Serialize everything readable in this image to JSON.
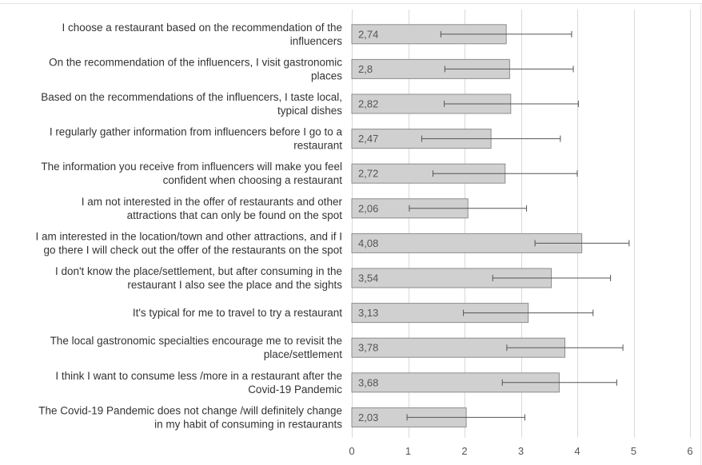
{
  "chart_data": {
    "type": "bar",
    "orientation": "horizontal",
    "grid": true,
    "xlim": [
      0,
      6
    ],
    "xticks": [
      "0",
      "1",
      "2",
      "3",
      "4",
      "5",
      "6"
    ],
    "categories": [
      [
        "I choose a restaurant based on the recommendation of the",
        "influencers"
      ],
      [
        "On the recommendation of the influencers, I visit gastronomic",
        "places"
      ],
      [
        "Based on the recommendations of the influencers, I taste local,",
        "typical dishes"
      ],
      [
        "I regularly gather information from influencers before I go to a",
        "restaurant"
      ],
      [
        "The information you receive from influencers will make you feel",
        "confident when choosing a restaurant"
      ],
      [
        "I am not interested in the offer of restaurants and other",
        "attractions that can only be found on the spot"
      ],
      [
        "I am interested in the location/town and other attractions, and if I",
        "go there I will check out the offer of the restaurants on the spot"
      ],
      [
        "I don't know the place/settlement, but after consuming in the",
        "restaurant I also see the place and the sights"
      ],
      [
        "It's typical for me to travel to try a restaurant"
      ],
      [
        "The local gastronomic specialties encourage me to revisit the",
        "place/settlement"
      ],
      [
        "I think I want to consume less /more in a restaurant after the",
        "Covid-19 Pandemic"
      ],
      [
        "The Covid-19 Pandemic does not change /will definitely change",
        "in my habit of consuming in restaurants"
      ]
    ],
    "values": [
      2.74,
      2.8,
      2.82,
      2.47,
      2.72,
      2.06,
      4.08,
      3.54,
      3.13,
      3.78,
      3.68,
      2.03
    ],
    "data_labels": [
      "2,74",
      "2,8",
      "2,82",
      "2,47",
      "2,72",
      "2,06",
      "4,08",
      "3,54",
      "3,13",
      "3,78",
      "3,68",
      "2,03"
    ],
    "error_low": [
      1.58,
      1.65,
      1.64,
      1.24,
      1.44,
      1.02,
      3.25,
      2.5,
      1.98,
      2.75,
      2.67,
      0.98
    ],
    "error_high": [
      3.9,
      3.93,
      4.02,
      3.7,
      4.0,
      3.1,
      4.92,
      4.59,
      4.28,
      4.81,
      4.7,
      3.07
    ],
    "colors": {
      "bar_fill": "#d0d0d0",
      "bar_stroke": "#8c8c8c",
      "grid": "#d9d9d9",
      "error_bar": "#555555"
    }
  }
}
